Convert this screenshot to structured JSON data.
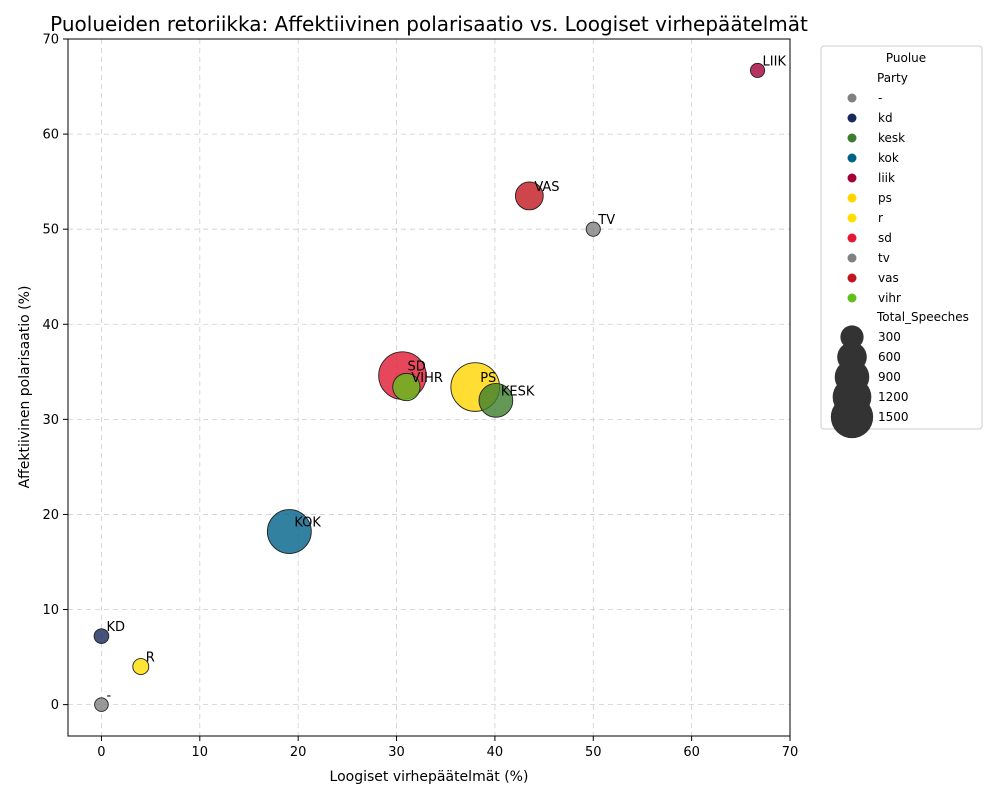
{
  "chart_data": {
    "type": "scatter",
    "title": "Puolueiden retoriikka: Affektiivinen polarisaatio vs. Loogiset virhepäätelmät",
    "xlabel": "Loogiset virhepäätelmät (%)",
    "ylabel": "Affektiivinen polarisaatio (%)",
    "xlim": [
      -3.4,
      70
    ],
    "ylim": [
      -3.3,
      70
    ],
    "xticks": [
      0,
      10,
      20,
      30,
      40,
      50,
      60,
      70
    ],
    "yticks": [
      0,
      10,
      20,
      30,
      40,
      50,
      60,
      70
    ],
    "grid": true,
    "legend": {
      "title": "Puolue",
      "placement": "outside-right",
      "hue_title": "Party",
      "hue_entries": [
        {
          "label": "-",
          "color": "#808080"
        },
        {
          "label": "kd",
          "color": "#18295a"
        },
        {
          "label": "kesk",
          "color": "#3c7e2d"
        },
        {
          "label": "kok",
          "color": "#006289"
        },
        {
          "label": "liik",
          "color": "#a4003a"
        },
        {
          "label": "ps",
          "color": "#ffd500"
        },
        {
          "label": "r",
          "color": "#ffdd00"
        },
        {
          "label": "sd",
          "color": "#e11931"
        },
        {
          "label": "tv",
          "color": "#808080"
        },
        {
          "label": "vas",
          "color": "#c2161e"
        },
        {
          "label": "vihr",
          "color": "#61bf1a"
        }
      ],
      "size_title": "Total_Speeches",
      "size_entries": [
        300,
        600,
        900,
        1200,
        1500
      ]
    },
    "points": [
      {
        "label": "-",
        "x": 0.0,
        "y": 0.0,
        "speeches": 20,
        "color": "#808080"
      },
      {
        "label": "KD",
        "x": 0.0,
        "y": 7.2,
        "speeches": 30,
        "color": "#18295a"
      },
      {
        "label": "R",
        "x": 4.0,
        "y": 4.0,
        "speeches": 45,
        "color": "#ffdd00"
      },
      {
        "label": "KOK",
        "x": 19.1,
        "y": 18.2,
        "speeches": 1130,
        "color": "#006289"
      },
      {
        "label": "SD",
        "x": 30.6,
        "y": 34.6,
        "speeches": 1380,
        "color": "#e11931"
      },
      {
        "label": "VIHR",
        "x": 31.0,
        "y": 33.4,
        "speeches": 310,
        "color": "#61bf1a"
      },
      {
        "label": "PS",
        "x": 38.0,
        "y": 33.4,
        "speeches": 1460,
        "color": "#ffd500"
      },
      {
        "label": "KESK",
        "x": 40.1,
        "y": 32.0,
        "speeches": 570,
        "color": "#3c7e2d"
      },
      {
        "label": "VAS",
        "x": 43.5,
        "y": 53.5,
        "speeches": 330,
        "color": "#c2161e"
      },
      {
        "label": "TV",
        "x": 50.0,
        "y": 50.0,
        "speeches": 25,
        "color": "#808080"
      },
      {
        "label": "LIIK",
        "x": 66.7,
        "y": 66.7,
        "speeches": 25,
        "color": "#a4003a"
      }
    ]
  }
}
